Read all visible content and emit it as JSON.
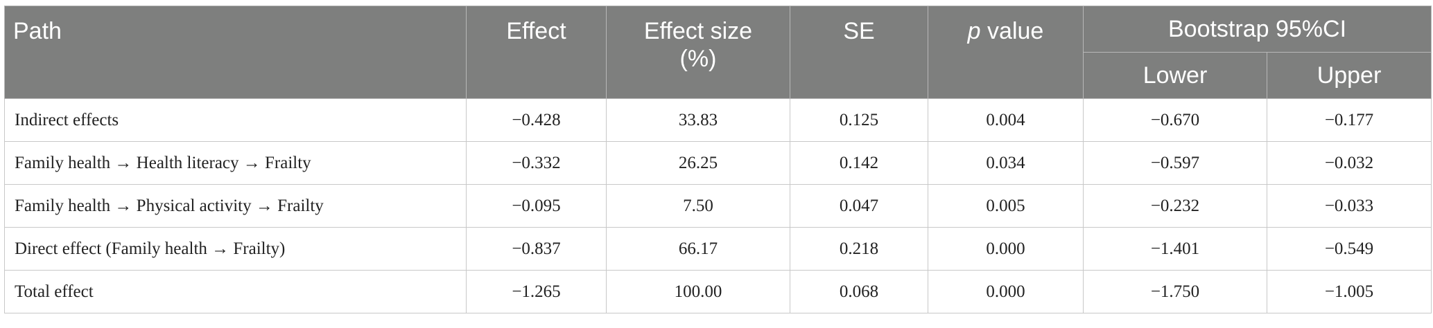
{
  "table": {
    "headers": {
      "path": "Path",
      "effect": "Effect",
      "effect_size": "Effect size",
      "effect_size_unit": "(%)",
      "se": "SE",
      "p_italic": "p",
      "p_rest": " value",
      "bootstrap": "Bootstrap 95%CI",
      "lower": "Lower",
      "upper": "Upper"
    },
    "rows": [
      {
        "path": "Indirect effects",
        "effect": "−0.428",
        "effect_size": "33.83",
        "se": "0.125",
        "p": "0.004",
        "lower": "−0.670",
        "upper": "−0.177"
      },
      {
        "path": "Family health → Health literacy → Frailty",
        "effect": "−0.332",
        "effect_size": "26.25",
        "se": "0.142",
        "p": "0.034",
        "lower": "−0.597",
        "upper": "−0.032"
      },
      {
        "path": "Family health → Physical activity → Frailty",
        "effect": "−0.095",
        "effect_size": "7.50",
        "se": "0.047",
        "p": "0.005",
        "lower": "−0.232",
        "upper": "−0.033"
      },
      {
        "path": "Direct effect (Family health → Frailty)",
        "effect": "−0.837",
        "effect_size": "66.17",
        "se": "0.218",
        "p": "0.000",
        "lower": "−1.401",
        "upper": "−0.549"
      },
      {
        "path": "Total effect",
        "effect": "−1.265",
        "effect_size": "100.00",
        "se": "0.068",
        "p": "0.000",
        "lower": "−1.750",
        "upper": "−1.005"
      }
    ]
  }
}
